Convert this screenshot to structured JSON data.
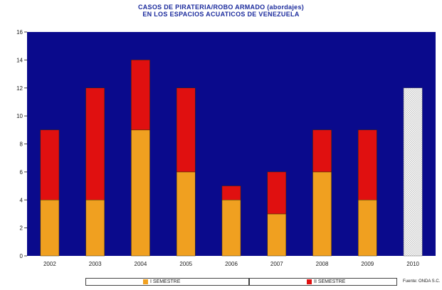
{
  "chart_data": {
    "type": "bar",
    "title": "CASOS DE PIRATERIA/ROBO ARMADO (abordajes)",
    "subtitle": "EN LOS ESPACIOS ACUATICOS DE VENEZUELA",
    "stacked": true,
    "categories": [
      "2002",
      "2003",
      "2004",
      "2005",
      "2006",
      "2007",
      "2008",
      "2009",
      "2010"
    ],
    "series": [
      {
        "name": "I SEMESTRE",
        "color": "#f0a020",
        "values": [
          4,
          4,
          9,
          6,
          4,
          3,
          6,
          4,
          null
        ]
      },
      {
        "name": "II SEMESTRE",
        "color": "#e01010",
        "values": [
          5,
          8,
          5,
          6,
          1,
          3,
          3,
          5,
          null
        ]
      }
    ],
    "projected": {
      "category": "2010",
      "value": 12,
      "style": "hatched"
    },
    "ylim": [
      0,
      16
    ],
    "yticks": [
      0,
      2,
      4,
      6,
      8,
      10,
      12,
      14,
      16
    ],
    "grid": false,
    "plot_background": "#0a0a8c",
    "legend_position": "bottom",
    "source_note": "Fuente: ONDA S.C."
  }
}
